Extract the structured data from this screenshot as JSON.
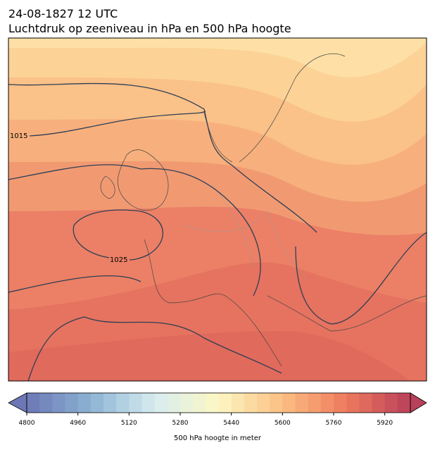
{
  "title": "24-08-1827 12 UTC",
  "subtitle": "Luchtdruk op zeeniveau in hPa en 500 hPa hoogte",
  "isobars": [
    {
      "label": "1015"
    },
    {
      "label": "1025"
    }
  ],
  "colorbar": {
    "label": "500 hPa hoogte in meter",
    "lim": [
      4800,
      6000
    ],
    "ticks": [
      4800,
      4960,
      5120,
      5280,
      5440,
      5600,
      5760,
      5920
    ],
    "colors": [
      "#6c77b6",
      "#8bb3d3",
      "#d7ecf0",
      "#fdf7c4",
      "#fbbf82",
      "#ee7a5e",
      "#b9405a"
    ]
  }
}
